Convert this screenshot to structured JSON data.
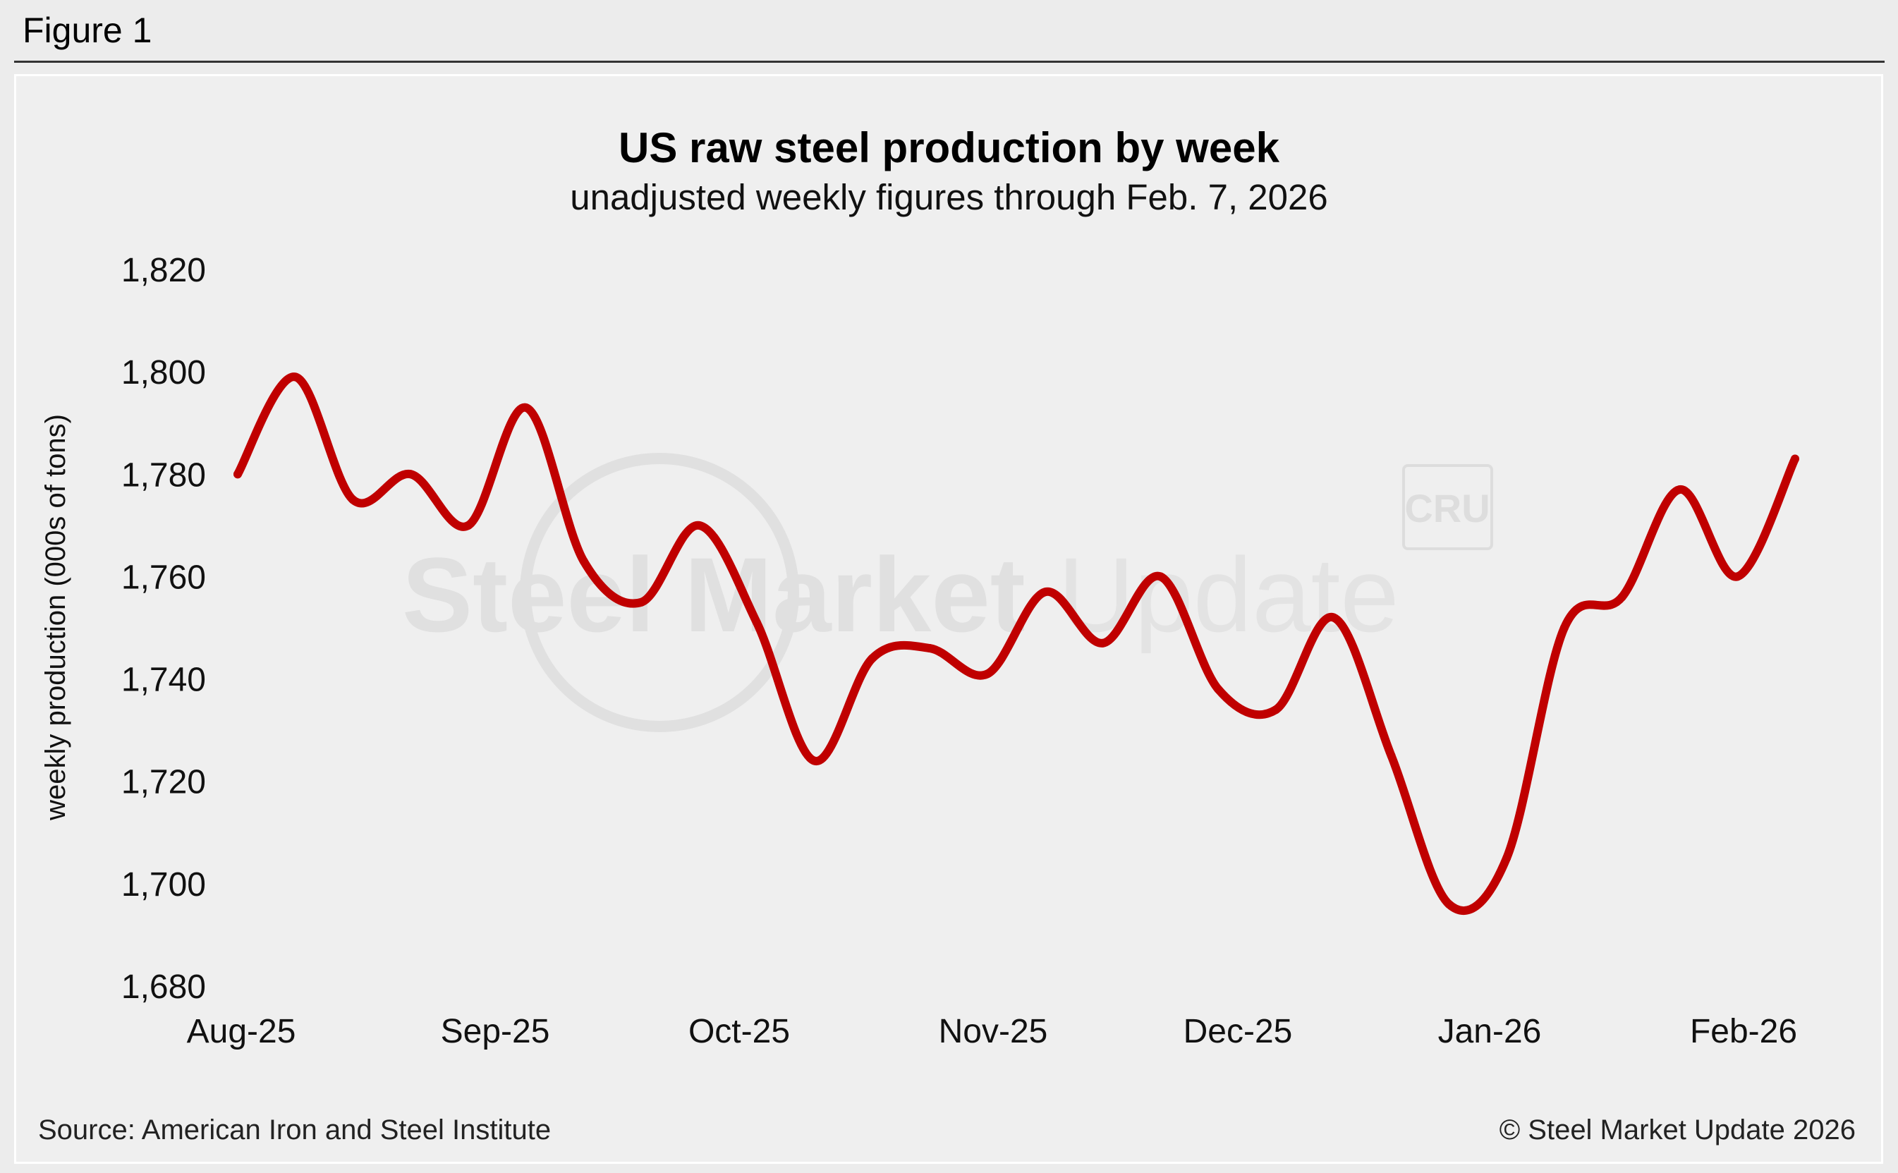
{
  "figure_label": "Figure 1",
  "source": "Source: American Iron and Steel Institute",
  "copyright": "© Steel Market Update 2026",
  "watermark": {
    "text_bold": "Steel Market",
    "text_light": "Update",
    "badge": "CRU"
  },
  "colors": {
    "line": "#c00000",
    "background": "#efefef"
  },
  "chart_data": {
    "type": "line",
    "title": "US raw steel production by week",
    "subtitle": "unadjusted weekly figures through Feb. 7, 2026",
    "xlabel": "",
    "ylabel": "weekly production (000s of tons)",
    "ylim": [
      1680,
      1820
    ],
    "yticks": [
      1820,
      1800,
      1780,
      1760,
      1740,
      1720,
      1700,
      1680
    ],
    "ytick_labels": [
      "1,820",
      "1,800",
      "1,780",
      "1,760",
      "1,740",
      "1,720",
      "1,700",
      "1,680"
    ],
    "xtick_labels": [
      "Aug-25",
      "Sep-25",
      "Oct-25",
      "Nov-25",
      "Dec-25",
      "Jan-26",
      "Feb-26"
    ],
    "grid": false,
    "series": [
      {
        "name": "weekly production",
        "x": [
          "Aug 2",
          "Aug 9",
          "Aug 16",
          "Aug 23",
          "Aug 30",
          "Sep 6",
          "Sep 13",
          "Sep 20",
          "Sep 27",
          "Oct 4",
          "Oct 11",
          "Oct 18",
          "Oct 25",
          "Nov 1",
          "Nov 8",
          "Nov 15",
          "Nov 22",
          "Nov 29",
          "Dec 6",
          "Dec 13",
          "Dec 20",
          "Dec 27",
          "Jan 3",
          "Jan 10",
          "Jan 17",
          "Jan 24",
          "Jan 31",
          "Feb 7"
        ],
        "values": [
          1780,
          1799,
          1775,
          1780,
          1770,
          1793,
          1763,
          1755,
          1770,
          1751,
          1724,
          1744,
          1746,
          1741,
          1757,
          1747,
          1760,
          1738,
          1734,
          1752,
          1725,
          1696,
          1705,
          1750,
          1756,
          1777,
          1760,
          1783
        ]
      }
    ]
  }
}
